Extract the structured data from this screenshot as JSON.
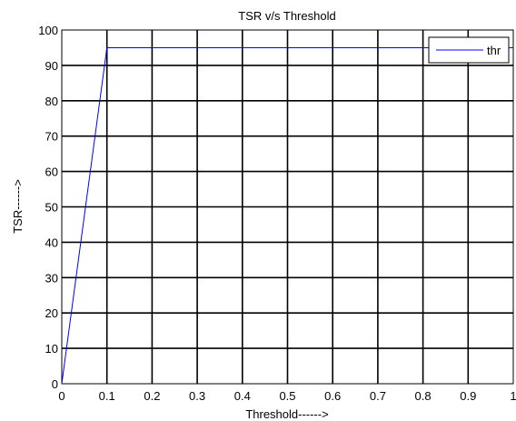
{
  "chart_data": {
    "type": "line",
    "title": "TSR v/s Threshold",
    "xlabel": "Threshold------>",
    "ylabel": "TSR------>",
    "xlim": [
      0,
      1
    ],
    "ylim": [
      0,
      100
    ],
    "xticks": [
      0,
      0.1,
      0.2,
      0.3,
      0.4,
      0.5,
      0.6,
      0.7,
      0.8,
      0.9,
      1
    ],
    "yticks": [
      0,
      10,
      20,
      30,
      40,
      50,
      60,
      70,
      80,
      90,
      100
    ],
    "grid": true,
    "legend_position": "top-right",
    "series": [
      {
        "name": "thr",
        "color": "#0000ff",
        "x": [
          0,
          0.1,
          1
        ],
        "y": [
          0,
          95,
          95
        ]
      }
    ]
  }
}
